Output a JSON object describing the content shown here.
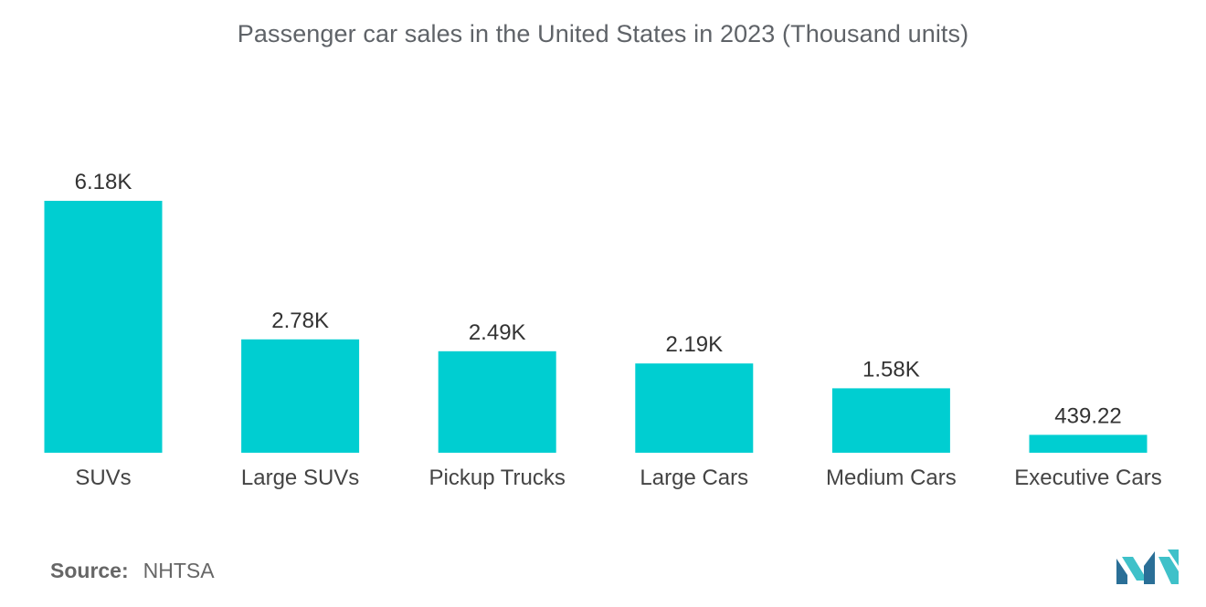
{
  "title": "Passenger car sales in the United States in 2023 (Thousand units)",
  "colors": {
    "bar": "#00CED1",
    "logo_dark": "#2a6f97",
    "logo_light": "#3fc1c9"
  },
  "chart_data": {
    "type": "bar",
    "title": "Passenger car sales in the United States in 2023 (Thousand units)",
    "xlabel": "",
    "ylabel": "",
    "grid": false,
    "ylim": [
      0,
      6180
    ],
    "categories": [
      "SUVs",
      "Large SUVs",
      "Pickup Trucks",
      "Large Cars",
      "Medium Cars",
      "Executive Cars"
    ],
    "values": [
      6180,
      2780,
      2490,
      2190,
      1580,
      439.22
    ],
    "value_labels": [
      "6.18K",
      "2.78K",
      "2.49K",
      "2.19K",
      "1.58K",
      "439.22"
    ]
  },
  "source": {
    "label": "Source:",
    "value": "NHTSA"
  },
  "logo": {
    "icon": "mordor-intelligence-logo-icon"
  }
}
